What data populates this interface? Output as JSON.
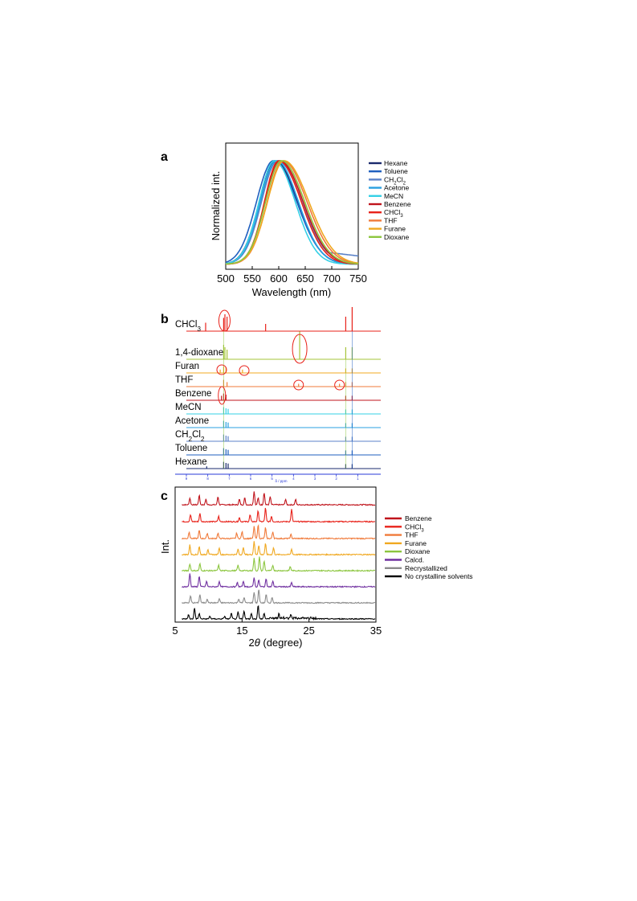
{
  "panels": {
    "a": "a",
    "b": "b",
    "c": "c"
  },
  "chart_data": [
    {
      "type": "line",
      "panel": "a",
      "xlabel": "Wavelength (nm)",
      "ylabel": "Normalized int.",
      "xlim": [
        500,
        750
      ],
      "ylim": [
        0,
        1
      ],
      "xticks": [
        "500",
        "550",
        "600",
        "650",
        "700",
        "750"
      ],
      "legend_position": "right",
      "series": [
        {
          "name": "Hexane",
          "label_main": "Hexane",
          "label_sub": "",
          "label_tail": "",
          "color": "#1a2a6c",
          "peak": 593,
          "left_width": 42,
          "right_width": 60
        },
        {
          "name": "Toluene",
          "label_main": "Toluene",
          "label_sub": "",
          "label_tail": "",
          "color": "#1f5fbf",
          "peak": 590,
          "left_width": 45,
          "right_width": 62
        },
        {
          "name": "CH2Cl2",
          "label_main": "CH",
          "label_sub": "2",
          "label_tail": "Cl",
          "label_sub2": "2",
          "color": "#5b82c8",
          "peak": 598,
          "left_width": 43,
          "right_width": 64
        },
        {
          "name": "Acetone",
          "label_main": "Acetone",
          "label_sub": "",
          "label_tail": "",
          "color": "#2aa0e0",
          "peak": 596,
          "left_width": 43,
          "right_width": 58
        },
        {
          "name": "MeCN",
          "label_main": "MeCN",
          "label_sub": "",
          "label_tail": "",
          "color": "#35d0e6",
          "peak": 592,
          "left_width": 41,
          "right_width": 55
        },
        {
          "name": "Benzene",
          "label_main": "Benzene",
          "label_sub": "",
          "label_tail": "",
          "color": "#c0141c",
          "peak": 602,
          "left_width": 40,
          "right_width": 62
        },
        {
          "name": "CHCl3",
          "label_main": "CHCl",
          "label_sub": "3",
          "label_tail": "",
          "color": "#e8221a",
          "peak": 600,
          "left_width": 38,
          "right_width": 60
        },
        {
          "name": "THF",
          "label_main": "THF",
          "label_sub": "",
          "label_tail": "",
          "color": "#f07a3a",
          "peak": 608,
          "left_width": 42,
          "right_width": 64
        },
        {
          "name": "Furane",
          "label_main": "Furane",
          "label_sub": "",
          "label_tail": "",
          "color": "#f0a820",
          "peak": 610,
          "left_width": 44,
          "right_width": 66
        },
        {
          "name": "Dioxane",
          "label_main": "Dioxane",
          "label_sub": "",
          "label_tail": "",
          "color": "#8cc63f",
          "peak": 605,
          "left_width": 42,
          "right_width": 62
        }
      ]
    },
    {
      "type": "line",
      "panel": "b",
      "xlabel": "δ / ppm",
      "xlim": [
        9,
        0
      ],
      "xticks": [
        "9",
        "8",
        "7",
        "6",
        "5",
        "4",
        "3",
        "2",
        "1"
      ],
      "series": [
        {
          "name": "CHCl3",
          "label_main": "CHCl",
          "label_sub": "3",
          "color": "#e8221a",
          "peaks": [
            [
              7.26,
              0.55
            ],
            [
              7.2,
              0.7
            ],
            [
              7.1,
              0.6
            ],
            [
              8.1,
              0.35
            ],
            [
              5.3,
              0.3
            ],
            [
              1.56,
              0.6
            ],
            [
              1.26,
              1.0
            ]
          ]
        },
        {
          "name": "1,4-dioxane",
          "label_main": "1,4-dioxane",
          "label_sub": "",
          "color": "#a6c43a",
          "peaks": [
            [
              7.26,
              0.6
            ],
            [
              7.2,
              0.5
            ],
            [
              7.1,
              0.4
            ],
            [
              3.71,
              1.0
            ],
            [
              1.56,
              0.5
            ],
            [
              1.26,
              0.5
            ]
          ]
        },
        {
          "name": "Furan",
          "label_main": "Furan",
          "label_sub": "",
          "color": "#f0a820",
          "peaks": [
            [
              7.42,
              0.3
            ],
            [
              7.26,
              0.6
            ],
            [
              7.15,
              0.5
            ],
            [
              6.38,
              0.3
            ],
            [
              1.56,
              0.4
            ],
            [
              1.26,
              0.4
            ]
          ]
        },
        {
          "name": "THF",
          "label_main": "THF",
          "label_sub": "",
          "color": "#f07a3a",
          "peaks": [
            [
              7.26,
              0.6
            ],
            [
              7.1,
              0.4
            ],
            [
              3.76,
              0.25
            ],
            [
              1.85,
              0.25
            ],
            [
              1.56,
              0.4
            ],
            [
              1.26,
              0.4
            ]
          ]
        },
        {
          "name": "Benzene",
          "label_main": "Benzene",
          "label_sub": "",
          "color": "#c0141c",
          "peaks": [
            [
              7.36,
              0.4
            ],
            [
              7.26,
              0.6
            ],
            [
              7.15,
              0.5
            ],
            [
              1.56,
              0.4
            ],
            [
              1.26,
              0.4
            ]
          ]
        },
        {
          "name": "MeCN",
          "label_main": "MeCN",
          "label_sub": "",
          "color": "#35d0e6",
          "peaks": [
            [
              7.26,
              0.6
            ],
            [
              7.15,
              0.5
            ],
            [
              7.05,
              0.45
            ],
            [
              1.56,
              0.4
            ],
            [
              1.26,
              0.4
            ]
          ]
        },
        {
          "name": "Acetone",
          "label_main": "Acetone",
          "label_sub": "",
          "color": "#2aa0e0",
          "peaks": [
            [
              7.26,
              0.6
            ],
            [
              7.15,
              0.5
            ],
            [
              7.05,
              0.45
            ],
            [
              1.56,
              0.4
            ],
            [
              1.26,
              0.4
            ]
          ]
        },
        {
          "name": "CH2Cl2",
          "label_main": "CH",
          "label_sub": "2",
          "label_tail": "Cl",
          "label_sub2": "2",
          "color": "#5b82c8",
          "peaks": [
            [
              7.26,
              0.6
            ],
            [
              7.15,
              0.5
            ],
            [
              7.05,
              0.45
            ],
            [
              1.56,
              0.4
            ],
            [
              1.26,
              0.4
            ]
          ]
        },
        {
          "name": "Toluene",
          "label_main": "Toluene",
          "label_sub": "",
          "color": "#1f5fbf",
          "peaks": [
            [
              7.26,
              0.6
            ],
            [
              7.15,
              0.5
            ],
            [
              7.05,
              0.45
            ],
            [
              1.56,
              0.4
            ],
            [
              1.26,
              0.4
            ]
          ]
        },
        {
          "name": "Hexane",
          "label_main": "Hexane",
          "label_sub": "",
          "color": "#1a2a6c",
          "peaks": [
            [
              7.26,
              0.6
            ],
            [
              7.15,
              0.5
            ],
            [
              7.05,
              0.45
            ],
            [
              8.05,
              0.2
            ],
            [
              1.56,
              0.4
            ],
            [
              1.26,
              0.4
            ]
          ]
        }
      ]
    },
    {
      "type": "line",
      "panel": "c",
      "xlabel": "2θ (degree)",
      "ylabel": "Int.",
      "xlim": [
        5,
        35
      ],
      "xticks": [
        "5",
        "15",
        "25",
        "35"
      ],
      "legend_position": "right",
      "series": [
        {
          "name": "Benzene",
          "label_main": "Benzene",
          "label_sub": "",
          "color": "#c0141c",
          "peaks": [
            [
              7.2,
              0.5
            ],
            [
              8.6,
              0.7
            ],
            [
              9.6,
              0.4
            ],
            [
              11.4,
              0.6
            ],
            [
              14.6,
              0.4
            ],
            [
              15.4,
              0.5
            ],
            [
              16.8,
              1.0
            ],
            [
              17.4,
              0.5
            ],
            [
              18.3,
              0.9
            ],
            [
              19.2,
              0.6
            ],
            [
              21.5,
              0.4
            ],
            [
              23.0,
              0.4
            ]
          ]
        },
        {
          "name": "CHCl3",
          "label_main": "CHCl",
          "label_sub": "3",
          "color": "#e8221a",
          "peaks": [
            [
              7.3,
              0.5
            ],
            [
              8.7,
              0.6
            ],
            [
              11.5,
              0.4
            ],
            [
              14.6,
              0.3
            ],
            [
              16.2,
              0.5
            ],
            [
              17.4,
              0.8
            ],
            [
              18.5,
              1.0
            ],
            [
              19.4,
              0.4
            ],
            [
              22.4,
              0.9
            ]
          ]
        },
        {
          "name": "THF",
          "label_main": "THF",
          "label_sub": "",
          "color": "#f07a3a",
          "peaks": [
            [
              7.1,
              0.5
            ],
            [
              8.6,
              0.6
            ],
            [
              9.8,
              0.4
            ],
            [
              11.4,
              0.4
            ],
            [
              14.2,
              0.4
            ],
            [
              15.0,
              0.5
            ],
            [
              16.8,
              0.9
            ],
            [
              17.4,
              1.0
            ],
            [
              18.5,
              0.8
            ],
            [
              19.6,
              0.5
            ],
            [
              22.3,
              0.3
            ]
          ]
        },
        {
          "name": "Furane",
          "label_main": "Furane",
          "label_sub": "",
          "color": "#f0a820",
          "peaks": [
            [
              7.2,
              0.7
            ],
            [
              8.6,
              0.6
            ],
            [
              9.9,
              0.4
            ],
            [
              11.6,
              0.5
            ],
            [
              14.4,
              0.4
            ],
            [
              15.2,
              0.5
            ],
            [
              16.8,
              1.0
            ],
            [
              17.5,
              0.7
            ],
            [
              18.5,
              0.8
            ],
            [
              19.7,
              0.5
            ],
            [
              22.4,
              0.4
            ]
          ]
        },
        {
          "name": "Dioxane",
          "label_main": "Dioxane",
          "label_sub": "",
          "color": "#8cc63f",
          "peaks": [
            [
              7.2,
              0.5
            ],
            [
              8.7,
              0.5
            ],
            [
              11.5,
              0.4
            ],
            [
              14.4,
              0.4
            ],
            [
              16.8,
              0.9
            ],
            [
              17.6,
              1.0
            ],
            [
              18.3,
              0.7
            ],
            [
              19.6,
              0.4
            ],
            [
              22.2,
              0.3
            ]
          ]
        },
        {
          "name": "Calcd.",
          "label_main": "Calcd.",
          "label_sub": "",
          "color": "#7030a0",
          "peaks": [
            [
              7.2,
              1.0
            ],
            [
              8.6,
              0.8
            ],
            [
              9.7,
              0.4
            ],
            [
              11.6,
              0.4
            ],
            [
              14.3,
              0.3
            ],
            [
              15.2,
              0.4
            ],
            [
              16.8,
              0.7
            ],
            [
              17.5,
              0.5
            ],
            [
              18.6,
              0.6
            ],
            [
              19.6,
              0.4
            ],
            [
              22.4,
              0.3
            ]
          ]
        },
        {
          "name": "Recrystallized",
          "label_main": "Recrystallized",
          "label_sub": "",
          "color": "#8c8c8c",
          "peaks": [
            [
              7.3,
              0.5
            ],
            [
              8.7,
              0.6
            ],
            [
              9.8,
              0.3
            ],
            [
              11.6,
              0.3
            ],
            [
              14.5,
              0.3
            ],
            [
              15.3,
              0.4
            ],
            [
              16.8,
              0.8
            ],
            [
              17.5,
              1.0
            ],
            [
              18.6,
              0.6
            ],
            [
              19.5,
              0.4
            ]
          ]
        },
        {
          "name": "No crystalline solvents",
          "label_main": "No crystalline solvents",
          "label_sub": "",
          "color": "#000000",
          "peaks": [
            [
              7.0,
              0.3
            ],
            [
              7.9,
              0.8
            ],
            [
              8.6,
              0.4
            ],
            [
              10.2,
              0.2
            ],
            [
              12.4,
              0.2
            ],
            [
              13.4,
              0.4
            ],
            [
              14.4,
              0.5
            ],
            [
              15.3,
              0.6
            ],
            [
              16.4,
              0.4
            ],
            [
              17.4,
              1.0
            ],
            [
              18.3,
              0.4
            ],
            [
              20.5,
              0.3
            ],
            [
              22.3,
              0.3
            ]
          ]
        }
      ]
    }
  ]
}
